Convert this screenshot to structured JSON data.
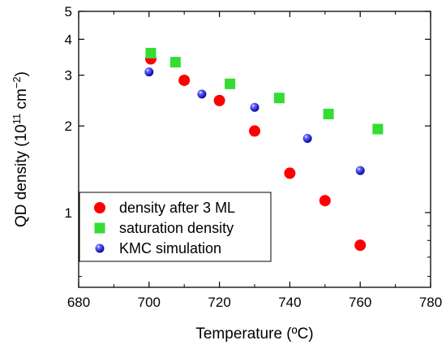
{
  "chart_data": {
    "type": "scatter",
    "title": "",
    "xlabel": "Temperature (ºC)",
    "ylabel": {
      "prefix": "QD density (10",
      "exp1": "11",
      "mid": " cm",
      "exp2": "−2",
      "suffix": ")"
    },
    "xlim": [
      680,
      780
    ],
    "ylim": [
      0.55,
      5
    ],
    "yscale": "log",
    "xticks": [
      680,
      700,
      720,
      740,
      760,
      780
    ],
    "yticks": [
      1,
      2,
      3,
      4,
      5
    ],
    "grid": false,
    "legend_position": "bottom-left",
    "series": [
      {
        "name": "density after 3 ML",
        "marker": "circle",
        "color": "#ff0000",
        "points": [
          [
            700.5,
            3.42
          ],
          [
            710,
            2.88
          ],
          [
            720,
            2.45
          ],
          [
            730,
            1.92
          ],
          [
            740,
            1.37
          ],
          [
            750,
            1.1
          ],
          [
            760,
            0.77
          ]
        ]
      },
      {
        "name": "saturation density",
        "marker": "square",
        "color": "#33dd33",
        "points": [
          [
            700.5,
            3.58
          ],
          [
            707.5,
            3.33
          ],
          [
            723,
            2.8
          ],
          [
            737,
            2.5
          ],
          [
            751,
            2.2
          ],
          [
            765,
            1.95
          ]
        ]
      },
      {
        "name": "KMC simulation",
        "marker": "sphere",
        "color": "#1a1aee",
        "points": [
          [
            700,
            3.08
          ],
          [
            715,
            2.58
          ],
          [
            730,
            2.32
          ],
          [
            745,
            1.81
          ],
          [
            760,
            1.4
          ]
        ]
      }
    ]
  }
}
